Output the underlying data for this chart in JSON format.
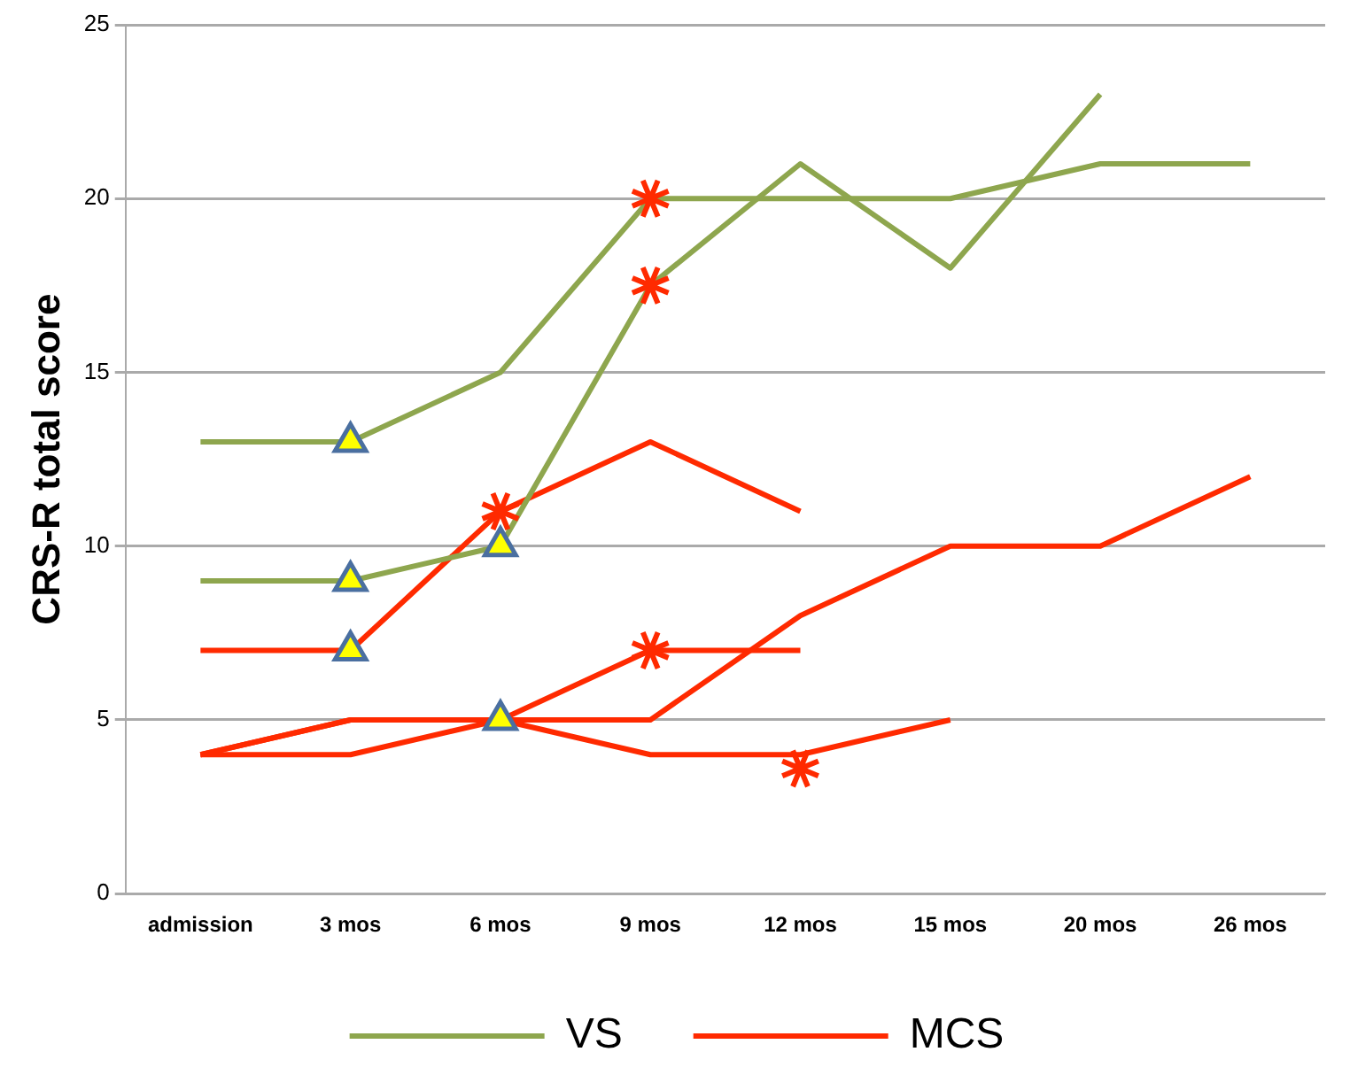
{
  "chart_data": {
    "type": "line",
    "ylabel": "CRS-R total score",
    "categories": [
      "admission",
      "3 mos",
      "6 mos",
      "9 mos",
      "12 mos",
      "15 mos",
      "20 mos",
      "26 mos"
    ],
    "ylim": [
      0,
      25
    ],
    "yticks": [
      0,
      5,
      10,
      15,
      20,
      25
    ],
    "grid": "y",
    "legend": "bottom",
    "marker": "none",
    "series": [
      {
        "name": "VS",
        "color": "#8ea64e",
        "values": [
          13,
          13,
          15,
          20,
          20,
          20,
          21,
          21
        ]
      },
      {
        "color": "#8ea64e",
        "values": [
          9,
          9,
          10,
          17.5,
          21,
          18,
          23,
          null
        ]
      },
      {
        "name": "MCS",
        "color": "#ff2a00",
        "values": [
          7,
          7,
          11,
          13,
          11,
          null,
          null,
          null
        ]
      },
      {
        "color": "#ff2a00",
        "values": [
          4,
          4,
          5,
          5,
          8,
          10,
          10,
          12
        ]
      },
      {
        "color": "#ff2a00",
        "values": [
          4,
          5,
          5,
          7,
          7,
          null,
          null,
          null
        ]
      },
      {
        "color": "#ff2a00",
        "values": [
          4,
          5,
          5,
          4,
          4,
          5,
          null,
          null
        ]
      },
      {
        "type": "scatter",
        "marker": "triangle",
        "color": "#ffff00",
        "x": [
          "3 mos",
          "3 mos",
          "3 mos",
          "6 mos",
          "6 mos"
        ],
        "values": [
          13,
          9,
          7,
          10,
          5
        ]
      },
      {
        "type": "scatter",
        "marker": "cross",
        "color": "#ff2a00",
        "x": [
          "9 mos",
          "9 mos",
          "6 mos",
          "9 mos",
          "12 mos"
        ],
        "values": [
          20,
          17.5,
          11,
          7,
          3.6
        ]
      }
    ]
  }
}
